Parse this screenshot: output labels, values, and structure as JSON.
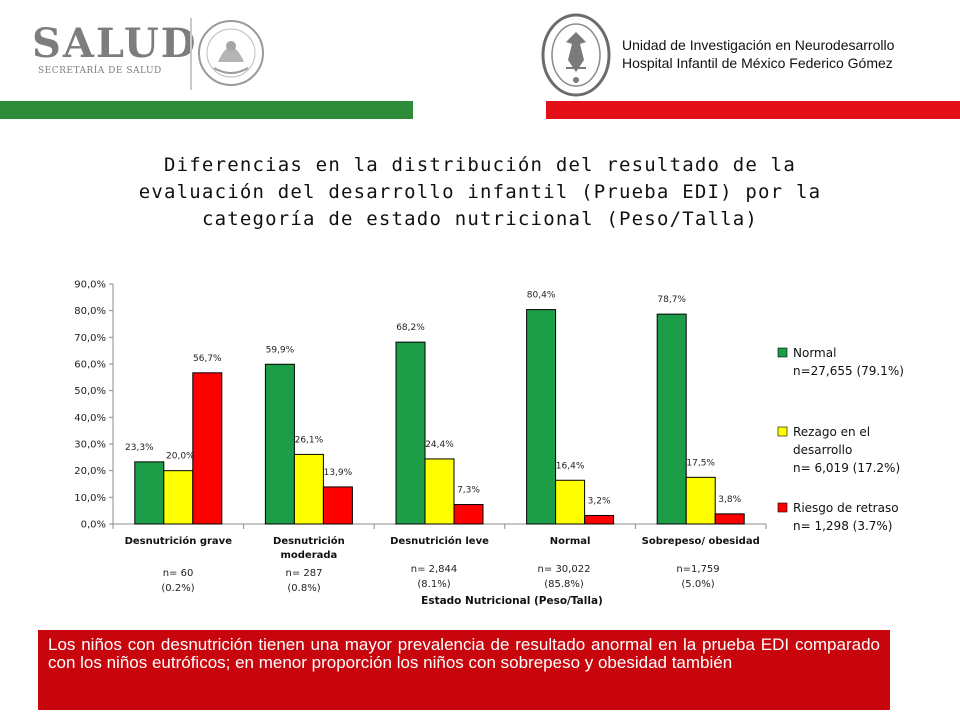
{
  "header": {
    "logo_word": "SALUD",
    "logo_subtitle": "SECRETARÍA DE SALUD",
    "seal_left_text": "ESTADOS UNIDOS MEXICANOS",
    "seal_right_text": "HOSPITAL INFANTIL DE MÉXICO FEDERICO GÓMEZ",
    "unit_line1": "Unidad de Investigación en Neurodesarrollo",
    "unit_line2": "Hospital Infantil de México Federico Gómez",
    "colors": {
      "green": "#2e8b3a",
      "red": "#e41019"
    }
  },
  "title": {
    "line1": "Diferencias en la distribución del resultado de la",
    "line2": "evaluación del desarrollo infantil (Prueba EDI) por la",
    "line3": "categoría de estado nutricional (Peso/Talla)"
  },
  "chart_data": {
    "type": "bar",
    "categories": [
      "Desnutrición grave",
      "Desnutrición moderada",
      "Desnutrición leve",
      "Normal",
      "Sobrepeso/ obesidad"
    ],
    "category_lines": [
      [
        "Desnutrición grave"
      ],
      [
        "Desnutrición",
        "moderada"
      ],
      [
        "Desnutrición leve"
      ],
      [
        "Normal"
      ],
      [
        "Sobrepeso/ obesidad"
      ]
    ],
    "category_counts": [
      [
        "n= 60",
        "(0.2%)"
      ],
      [
        "n= 287",
        "(0.8%)"
      ],
      [
        "n= 2,844",
        "(8.1%)"
      ],
      [
        "n= 30,022",
        "(85.8%)"
      ],
      [
        "n=1,759",
        "(5.0%)"
      ]
    ],
    "series": [
      {
        "name": "Normal n=27,655 (79.1%)",
        "legend_lines": [
          "Normal",
          "n=27,655 (79.1%)"
        ],
        "color": "#1c9e48",
        "values": [
          23.3,
          59.9,
          68.2,
          80.4,
          78.7
        ],
        "labels": [
          "23,3%",
          "59,9%",
          "68,2%",
          "80,4%",
          "78,7%"
        ]
      },
      {
        "name": "Rezago en el desarrollo n= 6,019 (17.2%)",
        "legend_lines": [
          "Rezago en el",
          "desarrollo",
          "n= 6,019 (17.2%)"
        ],
        "color": "#ffff00",
        "values": [
          20.0,
          26.1,
          24.4,
          16.4,
          17.5
        ],
        "labels": [
          "20,0%",
          "26,1%",
          "24,4%",
          "16,4%",
          "17,5%"
        ]
      },
      {
        "name": "Riesgo de retraso n= 1,298 (3.7%)",
        "legend_lines": [
          "Riesgo de retraso",
          "n= 1,298 (3.7%)"
        ],
        "color": "#ff0000",
        "values": [
          56.7,
          13.9,
          7.3,
          3.2,
          3.8
        ],
        "labels": [
          "56,7%",
          "13,9%",
          "7,3%",
          "3,2%",
          "3,8%"
        ]
      }
    ],
    "yticks": [
      "0,0%",
      "10,0%",
      "20,0%",
      "30,0%",
      "40,0%",
      "50,0%",
      "60,0%",
      "70,0%",
      "80,0%",
      "90,0%"
    ],
    "ylim": [
      0,
      90
    ],
    "xlabel": "Estado Nutricional (Peso/Talla)",
    "ylabel": "",
    "legend_position": "right",
    "grid": false
  },
  "conclusion": {
    "text": "Los niños con desnutrición tienen una mayor prevalencia de resultado anormal en la prueba EDI comparado con los niños eutróficos; en menor proporción los niños con sobrepeso y obesidad también"
  }
}
